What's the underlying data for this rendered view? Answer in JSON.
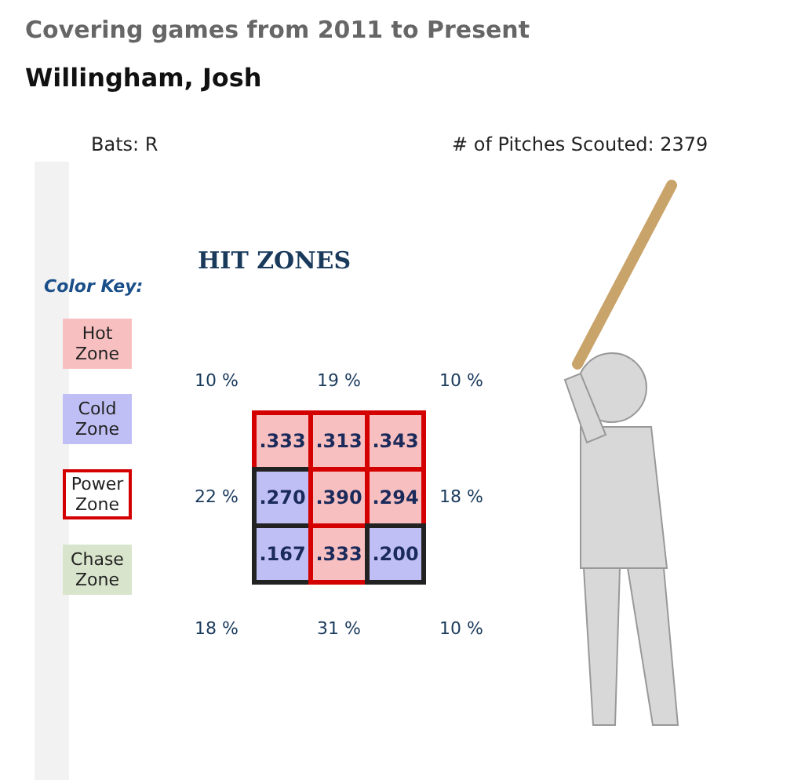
{
  "chart_data": [
    {
      "type": "heatmap",
      "title": "Covering games from 2011 to Present",
      "subtitle": "Willingham, Josh",
      "annotations": [
        "Bats: R",
        "# of Pitches Scouted: 2379",
        "HIT ZONES",
        "10 %",
        "19 %",
        "10 %",
        "22 %",
        "18 %",
        "18 %",
        "31 %",
        "10 %"
      ],
      "categories": [
        null,
        null,
        null
      ],
      "y_categories": [
        null,
        null,
        null
      ],
      "cells": [
        [
          0.333,
          0.313,
          0.343
        ],
        [
          0.27,
          0.39,
          0.294
        ],
        [
          0.167,
          0.333,
          0.2
        ]
      ],
      "cell_labels": [
        [
          ".333",
          ".313",
          ".343"
        ],
        [
          ".270",
          ".390",
          ".294"
        ],
        [
          ".167",
          ".333",
          ".200"
        ]
      ],
      "colors": [
        [
          [
            "#f7bfc0",
            "#d40000"
          ],
          [
            "#f7bfc0",
            "#d40000"
          ],
          [
            "#f7bfc0",
            "#d40000"
          ]
        ],
        [
          [
            "#bfbff5",
            "#222222"
          ],
          [
            "#f7bfc0",
            "#d40000"
          ],
          [
            "#f7bfc0",
            "#d40000"
          ]
        ],
        [
          [
            "#bfbff5",
            "#222222"
          ],
          [
            "#f7bfc0",
            "#d40000"
          ],
          [
            "#bfbff5",
            "#222222"
          ]
        ]
      ],
      "tick_labels": false
    },
    {
      "type": "other",
      "title": "Color Key:",
      "annotations": [
        "Hot Zone",
        "Cold Zone",
        "Power Zone",
        "Chase Zone"
      ],
      "colors": [
        [
          "#f7bfc0",
          "#f7bfc0"
        ],
        [
          "#bfbff5",
          "#bfbff5"
        ],
        [
          "#ffffff",
          "#d40000"
        ],
        [
          "#d9e4cc",
          "#d9e4cc"
        ]
      ]
    }
  ]
}
